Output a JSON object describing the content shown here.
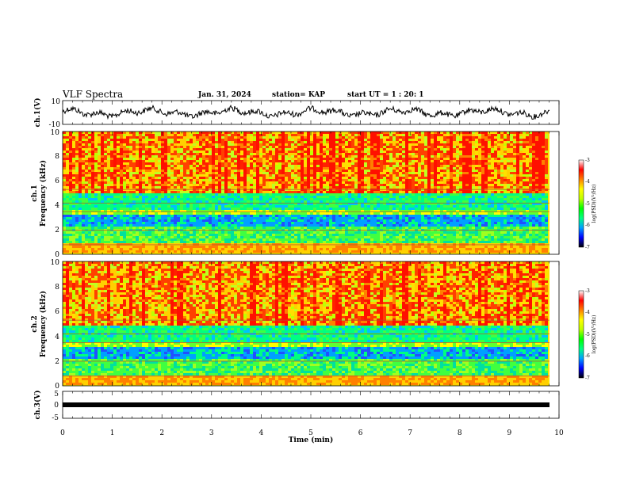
{
  "header": {
    "title": "VLF Spectra",
    "date": "Jan. 31, 2024",
    "station": "station= KAP",
    "start": "start UT =  1 : 20: 1"
  },
  "chart_data": [
    {
      "type": "line",
      "name": "ch1-waveform",
      "ylabel": "ch.1(V)",
      "ylim": [
        -10,
        10
      ],
      "yticks": [
        "10",
        "-10"
      ],
      "xlim": [
        0,
        10
      ]
    },
    {
      "type": "heatmap",
      "name": "ch1-spectrogram",
      "ylabel": "ch.1\nFrequency (kHz)",
      "ylim": [
        0,
        10
      ],
      "yticks": [
        "0",
        "2",
        "4",
        "6",
        "8",
        "10"
      ],
      "colorbar": {
        "label": "log(PSD)(V²/Hz)",
        "range": [
          -7,
          -3
        ],
        "ticks": [
          "-3",
          "-4",
          "-5",
          "-6",
          "-7"
        ]
      },
      "xlim": [
        0,
        10
      ]
    },
    {
      "type": "heatmap",
      "name": "ch2-spectrogram",
      "ylabel": "ch.2\nFrequency (kHz)",
      "ylim": [
        0,
        10
      ],
      "yticks": [
        "0",
        "2",
        "4",
        "6",
        "8",
        "10"
      ],
      "colorbar": {
        "label": "log(PSD)(V²/Hz)",
        "range": [
          -7,
          -3
        ],
        "ticks": [
          "-3",
          "-4",
          "-5",
          "-6",
          "-7"
        ]
      },
      "xlim": [
        0,
        10
      ]
    },
    {
      "type": "line",
      "name": "ch3-waveform",
      "ylabel": "ch.3(V)",
      "ylim": [
        -5,
        5
      ],
      "yticks": [
        "5",
        "0",
        "-5"
      ],
      "xlim": [
        0,
        10
      ]
    }
  ],
  "xaxis": {
    "label": "Time (min)",
    "ticks": [
      "0",
      "1",
      "2",
      "3",
      "4",
      "5",
      "6",
      "7",
      "8",
      "9",
      "10"
    ]
  },
  "labels": {
    "ch1_v": "ch.1(V)",
    "ch1": "ch.1",
    "freq": "Frequency (kHz)",
    "ch2": "ch.2",
    "ch3_v": "ch.3(V)",
    "cb_label": "log(PSD)(V²/Hz)"
  },
  "colors": {
    "palette": [
      "#000000",
      "#0000ff",
      "#00a0ff",
      "#00ff80",
      "#00ff00",
      "#c0ff00",
      "#ffff00",
      "#ff8000",
      "#ff0000",
      "#ffffff"
    ]
  }
}
